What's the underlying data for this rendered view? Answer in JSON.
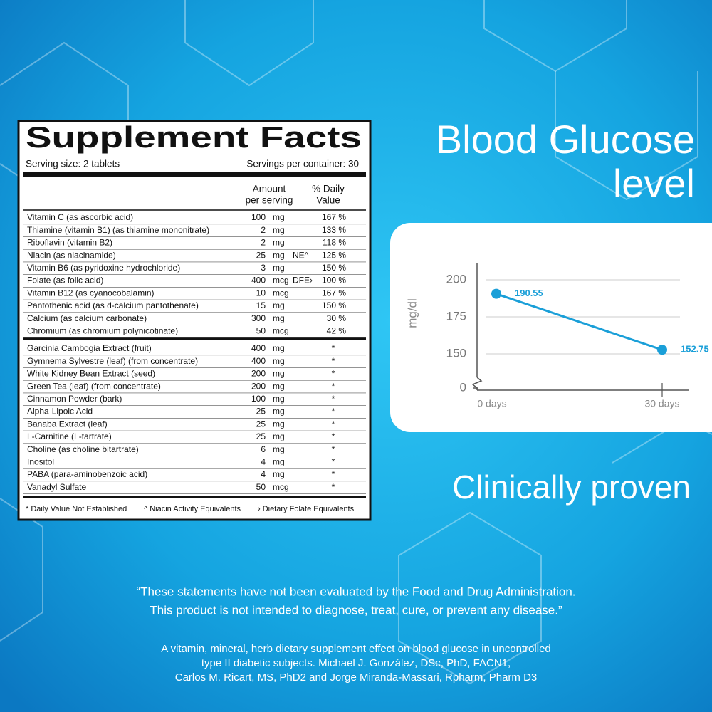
{
  "supplement_facts": {
    "title": "Supplement Facts",
    "serving_size": "Serving size: 2 tablets",
    "servings_per_container": "Servings per container: 30",
    "amount_header": [
      "Amount",
      "per serving"
    ],
    "dv_header": [
      "% Daily",
      "Value"
    ],
    "rows_nutrients": [
      {
        "name": "Vitamin C (as ascorbic acid)",
        "amount": 100,
        "unit": "mg",
        "dv": "167 %"
      },
      {
        "name": "Thiamine (vitamin B1) (as thiamine mononitrate)",
        "amount": 2,
        "unit": "mg",
        "dv": "133 %"
      },
      {
        "name": "Riboflavin (vitamin B2)",
        "amount": 2,
        "unit": "mg",
        "dv": "118 %"
      },
      {
        "name": "Niacin (as niacinamide)",
        "amount": 25,
        "unit": "mg",
        "note": "NE^",
        "dv": "125 %"
      },
      {
        "name": "Vitamin B6 (as pyridoxine hydrochloride)",
        "amount": 3,
        "unit": "mg",
        "dv": "150 %"
      },
      {
        "name": "Folate (as folic acid)",
        "amount": 400,
        "unit": "mcg",
        "note": "DFE›",
        "dv": "100 %"
      },
      {
        "name": "Vitamin B12 (as cyanocobalamin)",
        "amount": 10,
        "unit": "mcg",
        "dv": "167 %"
      },
      {
        "name": "Pantothenic acid (as d-calcium pantothenate)",
        "amount": 15,
        "unit": "mg",
        "dv": "150 %"
      },
      {
        "name": "Calcium (as calcium carbonate)",
        "amount": 300,
        "unit": "mg",
        "dv": "30 %"
      },
      {
        "name": "Chromium (as chromium polynicotinate)",
        "amount": 50,
        "unit": "mcg",
        "dv": "42 %"
      }
    ],
    "rows_other": [
      {
        "name": "Garcinia Cambogia Extract (fruit)",
        "amount": 400,
        "unit": "mg",
        "dv": "*"
      },
      {
        "name": "Gymnema Sylvestre (leaf) (from concentrate)",
        "amount": 400,
        "unit": "mg",
        "dv": "*"
      },
      {
        "name": "White Kidney Bean Extract (seed)",
        "amount": 200,
        "unit": "mg",
        "dv": "*"
      },
      {
        "name": "Green Tea (leaf) (from concentrate)",
        "amount": 200,
        "unit": "mg",
        "dv": "*"
      },
      {
        "name": "Cinnamon Powder (bark)",
        "amount": 100,
        "unit": "mg",
        "dv": "*"
      },
      {
        "name": "Alpha-Lipoic Acid",
        "amount": 25,
        "unit": "mg",
        "dv": "*"
      },
      {
        "name": "Banaba Extract (leaf)",
        "amount": 25,
        "unit": "mg",
        "dv": "*"
      },
      {
        "name": "L-Carnitine (L-tartrate)",
        "amount": 25,
        "unit": "mg",
        "dv": "*"
      },
      {
        "name": "Choline (as choline bitartrate)",
        "amount": 6,
        "unit": "mg",
        "dv": "*"
      },
      {
        "name": "Inositol",
        "amount": 4,
        "unit": "mg",
        "dv": "*"
      },
      {
        "name": "PABA (para-aminobenzoic acid)",
        "amount": 4,
        "unit": "mg",
        "dv": "*"
      },
      {
        "name": "Vanadyl Sulfate",
        "amount": 50,
        "unit": "mcg",
        "dv": "*"
      }
    ],
    "footnotes": [
      "* Daily Value Not Established",
      "^ Niacin Activity Equivalents",
      "› Dietary Folate Equivalents"
    ]
  },
  "headline": [
    "Blood Glucose",
    "level"
  ],
  "chart_data": {
    "type": "line",
    "y_label": "mg/dl",
    "categories": [
      "0 days",
      "30 days"
    ],
    "series": [
      {
        "color": "#1a9fd8",
        "values": [
          190.55,
          152.75
        ]
      }
    ],
    "ylim": [
      140,
      205
    ],
    "yticks": [
      0,
      150,
      175,
      200
    ],
    "axis_break": true,
    "grid": true
  },
  "claim": "Clinically proven",
  "disclaimer": [
    "“These statements have not been evaluated by the Food and Drug Administration.",
    "This product is not intended to diagnose, treat, cure, or prevent any disease.”"
  ],
  "citation": [
    "A vitamin, mineral, herb dietary supplement effect on blood glucose in uncontrolled",
    "type II diabetic subjects. Michael J. González, DSc, PhD, FACN1,",
    "Carlos M. Ricart, MS, PhD2 and Jorge  Miranda-Massari, Rpharm, Pharm D3"
  ]
}
